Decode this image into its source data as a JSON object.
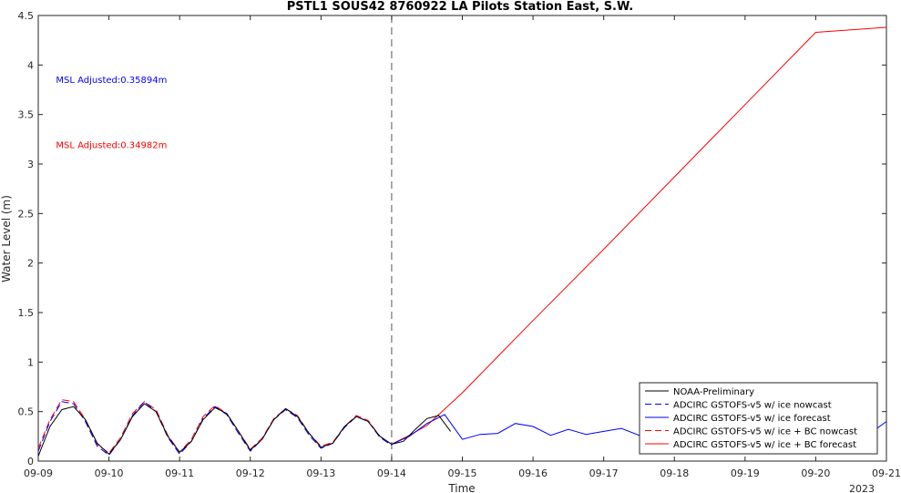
{
  "chart_data": {
    "type": "line",
    "title": "PSTL1 SOUS42 8760922 LA Pilots Station East, S.W.",
    "xlabel": "Time",
    "ylabel": "Water Level (m)",
    "xlim": [
      "2023-09-09",
      "2023-09-21"
    ],
    "ylim": [
      0,
      4.5
    ],
    "x_ticks": [
      "09-09",
      "09-10",
      "09-11",
      "09-12",
      "09-13",
      "09-14",
      "09-15",
      "09-16",
      "09-17",
      "09-18",
      "09-19",
      "09-20",
      "09-21"
    ],
    "x_tick_year": "2023",
    "y_ticks": [
      "0",
      "0.5",
      "1",
      "1.5",
      "2",
      "2.5",
      "3",
      "3.5",
      "4",
      "4.5"
    ],
    "grid": false,
    "legend_position": "bottom-right",
    "forecast_start": "2023-09-14",
    "annotations": [
      {
        "text": "MSL Adjusted:0.35894m",
        "color": "#0000ff",
        "x": "2023-09-09 06:00",
        "y": 3.82
      },
      {
        "text": "MSL Adjusted:0.34982m",
        "color": "#ff0000",
        "x": "2023-09-09 06:00",
        "y": 3.16
      }
    ],
    "series": [
      {
        "name": "NOAA-Preliminary",
        "color": "#000000",
        "style": "solid",
        "x": [
          "2023-09-09 00:00",
          "2023-09-09 04:00",
          "2023-09-09 08:00",
          "2023-09-09 12:00",
          "2023-09-09 16:00",
          "2023-09-09 20:00",
          "2023-09-10 00:00",
          "2023-09-10 04:00",
          "2023-09-10 08:00",
          "2023-09-10 12:00",
          "2023-09-10 16:00",
          "2023-09-10 20:00",
          "2023-09-11 00:00",
          "2023-09-11 04:00",
          "2023-09-11 08:00",
          "2023-09-11 12:00",
          "2023-09-11 16:00",
          "2023-09-11 20:00",
          "2023-09-12 00:00",
          "2023-09-12 04:00",
          "2023-09-12 08:00",
          "2023-09-12 12:00",
          "2023-09-12 16:00",
          "2023-09-12 20:00",
          "2023-09-13 00:00",
          "2023-09-13 04:00",
          "2023-09-13 08:00",
          "2023-09-13 12:00",
          "2023-09-13 16:00",
          "2023-09-13 20:00",
          "2023-09-14 00:00",
          "2023-09-14 04:00",
          "2023-09-14 08:00",
          "2023-09-14 12:00",
          "2023-09-14 16:00",
          "2023-09-14 20:00"
        ],
        "values": [
          0.05,
          0.35,
          0.52,
          0.55,
          0.42,
          0.18,
          0.07,
          0.22,
          0.45,
          0.58,
          0.5,
          0.25,
          0.09,
          0.2,
          0.42,
          0.54,
          0.48,
          0.3,
          0.11,
          0.22,
          0.42,
          0.53,
          0.45,
          0.28,
          0.14,
          0.18,
          0.35,
          0.45,
          0.4,
          0.25,
          0.17,
          0.2,
          0.32,
          0.43,
          0.46,
          0.3
        ]
      },
      {
        "name": "ADCIRC GSTOFS-v5 w/ ice nowcast",
        "color": "#0000ff",
        "style": "dashed",
        "x": [
          "2023-09-09 00:00",
          "2023-09-09 04:00",
          "2023-09-09 08:00",
          "2023-09-09 12:00",
          "2023-09-09 16:00",
          "2023-09-09 20:00",
          "2023-09-10 00:00",
          "2023-09-10 04:00",
          "2023-09-10 08:00",
          "2023-09-10 12:00",
          "2023-09-10 16:00",
          "2023-09-10 20:00",
          "2023-09-11 00:00",
          "2023-09-11 04:00",
          "2023-09-11 08:00",
          "2023-09-11 12:00",
          "2023-09-11 16:00",
          "2023-09-11 20:00",
          "2023-09-12 00:00",
          "2023-09-12 04:00",
          "2023-09-12 08:00",
          "2023-09-12 12:00",
          "2023-09-12 16:00",
          "2023-09-12 20:00",
          "2023-09-13 00:00",
          "2023-09-13 04:00",
          "2023-09-13 08:00",
          "2023-09-13 12:00",
          "2023-09-13 16:00",
          "2023-09-13 20:00",
          "2023-09-14 00:00"
        ],
        "values": [
          0.1,
          0.4,
          0.6,
          0.58,
          0.4,
          0.15,
          0.06,
          0.22,
          0.46,
          0.6,
          0.5,
          0.24,
          0.07,
          0.2,
          0.43,
          0.55,
          0.47,
          0.28,
          0.1,
          0.22,
          0.42,
          0.52,
          0.44,
          0.26,
          0.13,
          0.18,
          0.34,
          0.45,
          0.4,
          0.24,
          0.16
        ]
      },
      {
        "name": "ADCIRC GSTOFS-v5 w/ ice forecast",
        "color": "#0000ff",
        "style": "solid",
        "x": [
          "2023-09-14 00:00",
          "2023-09-14 06:00",
          "2023-09-14 12:00",
          "2023-09-14 18:00",
          "2023-09-15 00:00",
          "2023-09-15 06:00",
          "2023-09-15 12:00",
          "2023-09-15 18:00",
          "2023-09-16 00:00",
          "2023-09-16 06:00",
          "2023-09-16 12:00",
          "2023-09-16 18:00",
          "2023-09-17 00:00",
          "2023-09-17 06:00",
          "2023-09-17 12:00",
          "2023-09-17 18:00",
          "2023-09-18 00:00",
          "2023-09-18 06:00",
          "2023-09-18 12:00",
          "2023-09-18 18:00",
          "2023-09-19 00:00",
          "2023-09-19 06:00",
          "2023-09-19 12:00",
          "2023-09-19 18:00",
          "2023-09-20 00:00",
          "2023-09-20 06:00",
          "2023-09-20 12:00",
          "2023-09-20 18:00",
          "2023-09-21 00:00"
        ],
        "values": [
          0.17,
          0.25,
          0.38,
          0.47,
          0.22,
          0.27,
          0.28,
          0.38,
          0.35,
          0.26,
          0.32,
          0.27,
          0.3,
          0.33,
          0.26,
          0.35,
          0.26,
          0.31,
          0.3,
          0.28,
          0.34,
          0.27,
          0.31,
          0.28,
          0.33,
          0.26,
          0.3,
          0.27,
          0.4
        ]
      },
      {
        "name": "ADCIRC GSTOFS-v5 w/ ice + BC nowcast",
        "color": "#ff0000",
        "style": "dashed",
        "x": [
          "2023-09-09 00:00",
          "2023-09-09 04:00",
          "2023-09-09 08:00",
          "2023-09-09 12:00",
          "2023-09-09 16:00",
          "2023-09-09 20:00",
          "2023-09-10 00:00",
          "2023-09-10 04:00",
          "2023-09-10 08:00",
          "2023-09-10 12:00",
          "2023-09-10 16:00",
          "2023-09-10 20:00",
          "2023-09-11 00:00",
          "2023-09-11 04:00",
          "2023-09-11 08:00",
          "2023-09-11 12:00",
          "2023-09-11 16:00",
          "2023-09-11 20:00",
          "2023-09-12 00:00",
          "2023-09-12 04:00",
          "2023-09-12 08:00",
          "2023-09-12 12:00",
          "2023-09-12 16:00",
          "2023-09-12 20:00",
          "2023-09-13 00:00",
          "2023-09-13 04:00",
          "2023-09-13 08:00",
          "2023-09-13 12:00",
          "2023-09-13 16:00",
          "2023-09-13 20:00",
          "2023-09-14 00:00"
        ],
        "values": [
          0.13,
          0.42,
          0.62,
          0.6,
          0.42,
          0.17,
          0.08,
          0.24,
          0.48,
          0.6,
          0.52,
          0.26,
          0.09,
          0.22,
          0.45,
          0.56,
          0.48,
          0.3,
          0.12,
          0.23,
          0.43,
          0.53,
          0.46,
          0.28,
          0.15,
          0.19,
          0.35,
          0.46,
          0.41,
          0.25,
          0.17
        ]
      },
      {
        "name": "ADCIRC GSTOFS-v5 w/ ice + BC forecast",
        "color": "#ff0000",
        "style": "solid",
        "x": [
          "2023-09-14 00:00",
          "2023-09-14 06:00",
          "2023-09-14 12:00",
          "2023-09-15 00:00",
          "2023-09-16 00:00",
          "2023-09-17 00:00",
          "2023-09-18 00:00",
          "2023-09-19 00:00",
          "2023-09-20 00:00",
          "2023-09-21 00:00"
        ],
        "values": [
          0.17,
          0.26,
          0.36,
          0.69,
          1.42,
          2.14,
          2.87,
          3.6,
          4.33,
          4.38
        ]
      }
    ]
  }
}
